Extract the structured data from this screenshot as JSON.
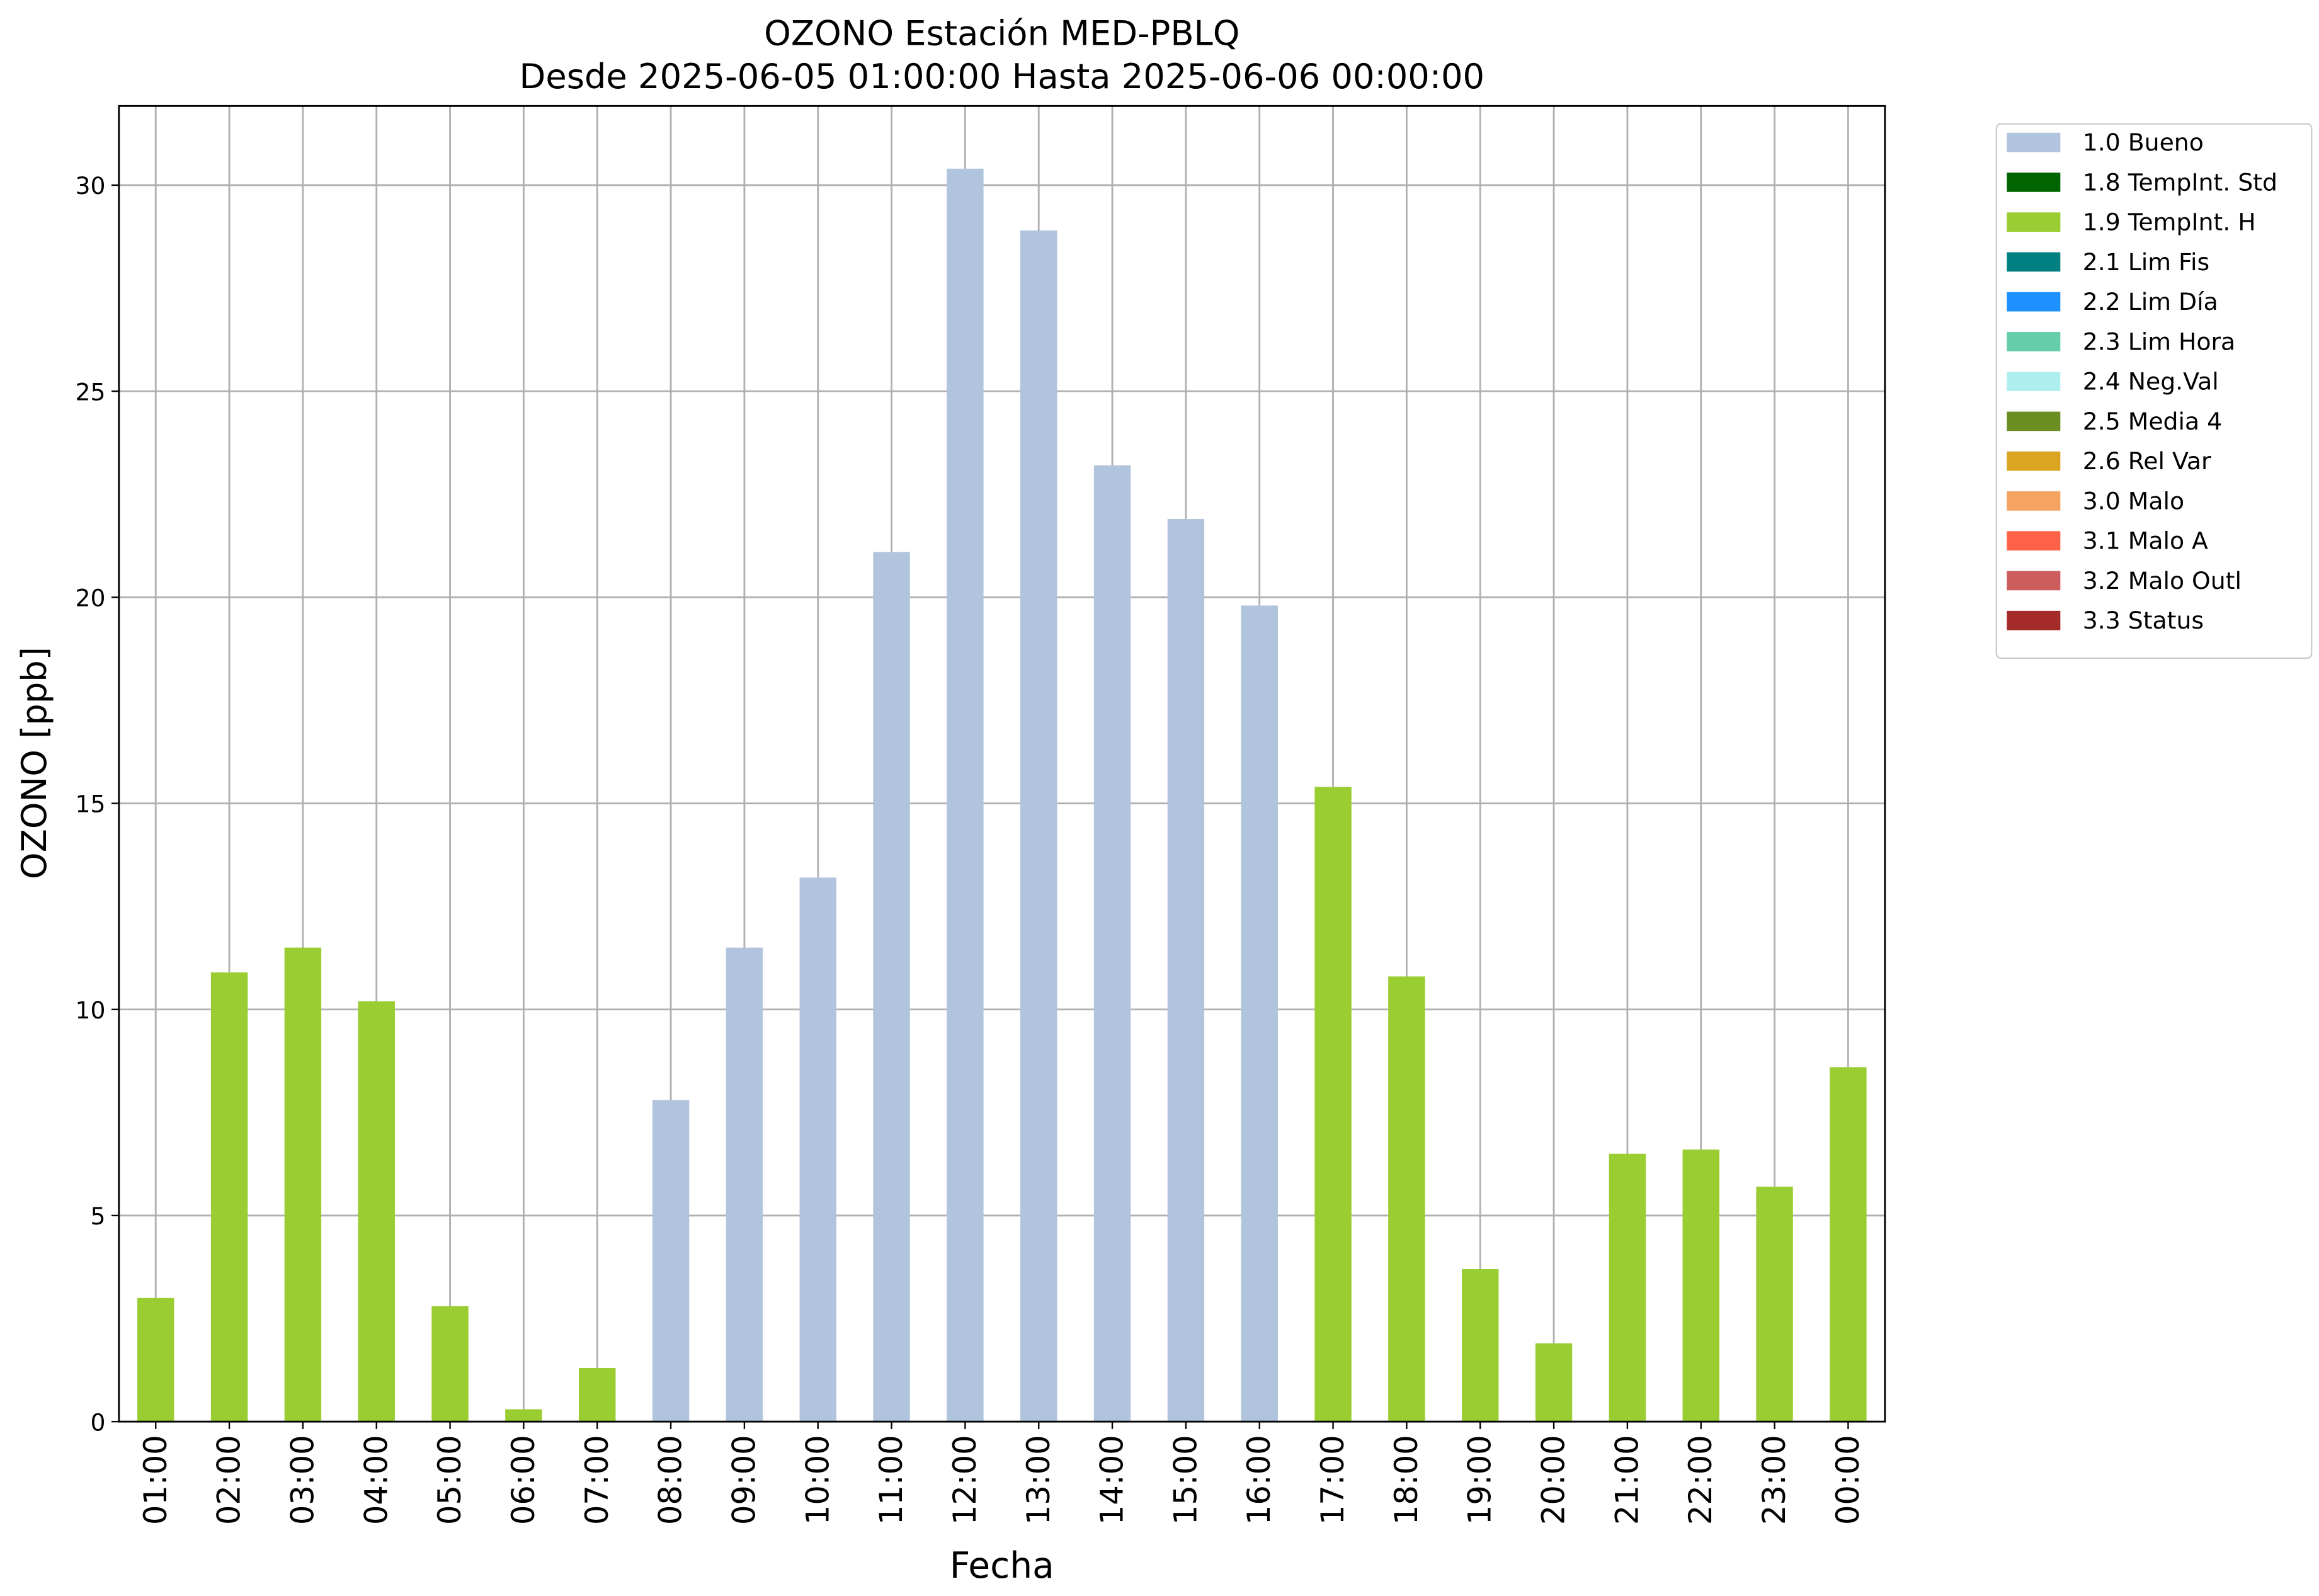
{
  "chart_data": {
    "type": "bar",
    "stacked": true,
    "title": "OZONO Estación MED-PBLQ",
    "subtitle": "Desde 2025-06-05 01:00:00 Hasta 2025-06-06 00:00:00",
    "x_label": "Fecha",
    "y_label": "OZONO [ppb]",
    "categories": [
      "01:00",
      "02:00",
      "03:00",
      "04:00",
      "05:00",
      "06:00",
      "07:00",
      "08:00",
      "09:00",
      "10:00",
      "11:00",
      "12:00",
      "13:00",
      "14:00",
      "15:00",
      "16:00",
      "17:00",
      "18:00",
      "19:00",
      "20:00",
      "21:00",
      "22:00",
      "23:00",
      "00:00"
    ],
    "series": [
      {
        "name": "1.0 Bueno",
        "color": "#b0c4de",
        "values": [
          null,
          null,
          null,
          null,
          null,
          null,
          null,
          7.8,
          11.5,
          13.2,
          21.1,
          30.4,
          28.9,
          23.2,
          21.9,
          19.8,
          null,
          null,
          null,
          null,
          null,
          null,
          null,
          null
        ]
      },
      {
        "name": "1.8 TempInt. Std",
        "color": "#006400",
        "values": [
          null,
          null,
          null,
          null,
          null,
          null,
          null,
          null,
          null,
          null,
          null,
          null,
          null,
          null,
          null,
          null,
          null,
          null,
          null,
          null,
          null,
          null,
          null,
          null
        ]
      },
      {
        "name": "1.9 TempInt. H",
        "color": "#9acd32",
        "values": [
          3.0,
          10.9,
          11.5,
          10.2,
          2.8,
          0.3,
          1.3,
          null,
          null,
          null,
          null,
          null,
          null,
          null,
          null,
          null,
          15.4,
          10.8,
          3.7,
          1.9,
          6.5,
          6.6,
          5.7,
          8.6
        ]
      },
      {
        "name": "2.1 Lim Fis",
        "color": "#008080",
        "values": [
          null,
          null,
          null,
          null,
          null,
          null,
          null,
          null,
          null,
          null,
          null,
          null,
          null,
          null,
          null,
          null,
          null,
          null,
          null,
          null,
          null,
          null,
          null,
          null
        ]
      },
      {
        "name": "2.2 Lim Día",
        "color": "#1e90ff",
        "values": [
          null,
          null,
          null,
          null,
          null,
          null,
          null,
          null,
          null,
          null,
          null,
          null,
          null,
          null,
          null,
          null,
          null,
          null,
          null,
          null,
          null,
          null,
          null,
          null
        ]
      },
      {
        "name": "2.3 Lim Hora",
        "color": "#66cdaa",
        "values": [
          null,
          null,
          null,
          null,
          null,
          null,
          null,
          null,
          null,
          null,
          null,
          null,
          null,
          null,
          null,
          null,
          null,
          null,
          null,
          null,
          null,
          null,
          null,
          null
        ]
      },
      {
        "name": "2.4 Neg.Val",
        "color": "#afeeee",
        "values": [
          null,
          null,
          null,
          null,
          null,
          null,
          null,
          null,
          null,
          null,
          null,
          null,
          null,
          null,
          null,
          null,
          null,
          null,
          null,
          null,
          null,
          null,
          null,
          null
        ]
      },
      {
        "name": "2.5 Media 4",
        "color": "#6b8e23",
        "values": [
          null,
          null,
          null,
          null,
          null,
          null,
          null,
          null,
          null,
          null,
          null,
          null,
          null,
          null,
          null,
          null,
          null,
          null,
          null,
          null,
          null,
          null,
          null,
          null
        ]
      },
      {
        "name": "2.6 Rel Var",
        "color": "#daa520",
        "values": [
          null,
          null,
          null,
          null,
          null,
          null,
          null,
          null,
          null,
          null,
          null,
          null,
          null,
          null,
          null,
          null,
          null,
          null,
          null,
          null,
          null,
          null,
          null,
          null
        ]
      },
      {
        "name": "3.0 Malo",
        "color": "#f4a460",
        "values": [
          null,
          null,
          null,
          null,
          null,
          null,
          null,
          null,
          null,
          null,
          null,
          null,
          null,
          null,
          null,
          null,
          null,
          null,
          null,
          null,
          null,
          null,
          null,
          null
        ]
      },
      {
        "name": "3.1 Malo A",
        "color": "#ff6347",
        "values": [
          null,
          null,
          null,
          null,
          null,
          null,
          null,
          null,
          null,
          null,
          null,
          null,
          null,
          null,
          null,
          null,
          null,
          null,
          null,
          null,
          null,
          null,
          null,
          null
        ]
      },
      {
        "name": "3.2 Malo Outl",
        "color": "#cd5c5c",
        "values": [
          null,
          null,
          null,
          null,
          null,
          null,
          null,
          null,
          null,
          null,
          null,
          null,
          null,
          null,
          null,
          null,
          null,
          null,
          null,
          null,
          null,
          null,
          null,
          null
        ]
      },
      {
        "name": "3.3 Status",
        "color": "#a52a2a",
        "values": [
          null,
          null,
          null,
          null,
          null,
          null,
          null,
          null,
          null,
          null,
          null,
          null,
          null,
          null,
          null,
          null,
          null,
          null,
          null,
          null,
          null,
          null,
          null,
          null
        ]
      }
    ],
    "ylim": [
      0,
      31.92
    ],
    "yticks": [
      0,
      5,
      10,
      15,
      20,
      25,
      30
    ],
    "grid": true,
    "legend": "outside-right"
  }
}
